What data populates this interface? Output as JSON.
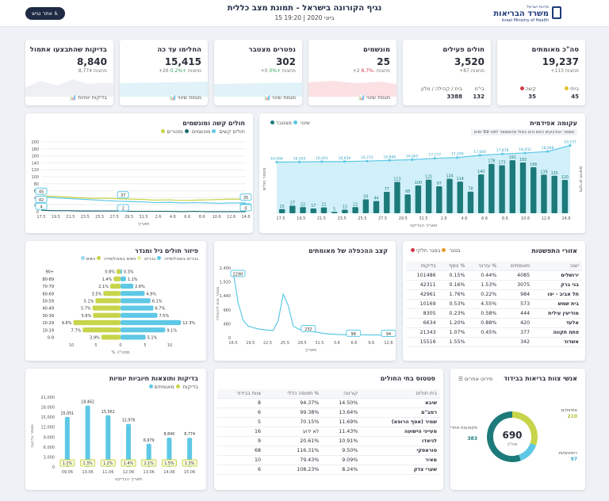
{
  "header": {
    "title": "נגיף הקורונה בישראל - תמונת מצב כללית",
    "date": "15 ביוני 2020 | 19:20",
    "en_button": "אתר נגיש",
    "logo_line1": "מדינת ישראל",
    "logo_line2": "משרד הבריאות",
    "logo_line3": "Israel Ministry of Health"
  },
  "stats": [
    {
      "title": "סה\"כ מאומתים",
      "value": "19,237",
      "sub": "+113 מחצות",
      "l1": "ביתי",
      "v1": "45",
      "l2": "קשה",
      "v2": "35"
    },
    {
      "title": "חולים פעילים",
      "value": "3,520",
      "sub": "+87 מחצות",
      "l1": "בי\"ח",
      "v1": "132",
      "l2": "בית / קהילה / מלון",
      "v2": "3388"
    },
    {
      "title": "מונשמים",
      "value": "25",
      "sub": "+2 מחצות",
      "pct": "-8.7%",
      "foot": "מגמת שינוי"
    },
    {
      "title": "נפטרים מצטבר",
      "value": "302",
      "sub": "+0 מחצות",
      "pct": "+0%",
      "foot": "מגמת שינוי"
    },
    {
      "title": "החלימו עד כה",
      "value": "15,415",
      "sub": "+26 מחצות",
      "pct": "+0.2%",
      "foot": "מגמת שינוי"
    },
    {
      "title": "בדיקות שהתבצעו אתמול",
      "value": "8,840",
      "sub": "8,774 מחצות",
      "foot": "בדיקות יומיות"
    }
  ],
  "epi": {
    "title": "עקומה אפידמית",
    "legend_a": "שינוי",
    "legend_b": "מצטבר",
    "note": "מספר הנדבקים היום הינו כפול מהמספר לפני 69 ימים",
    "ylabel_left": "מספר חולים",
    "ylabel_right": "מקרים חדשים",
    "xlabel": "תאריך הבדיקה"
  },
  "severe": {
    "title": "חולים קשה ומונשמים",
    "legend_a": "חולים קשים",
    "legend_b": "מונשמים",
    "legend_c": "נפטרים",
    "xlabel": "תאריך"
  },
  "age": {
    "title": "פיזור חולים גיל ומגדר",
    "legend_a": "גברים באוכלוסייה",
    "legend_b": "גברים",
    "legend_c": "נשים באוכלוסייה",
    "legend_d": "נשים",
    "xlabel": "% מסה\"כ"
  },
  "doubling": {
    "title": "קצב ההכפלה של מאומתים",
    "ylabel": "מספר ימים להכפלה",
    "xlabel": "תאריך"
  },
  "cities": {
    "title": "אזורי התפשטות",
    "legend_a": "בסגר",
    "legend_b": "בסגר חלקי",
    "headers": [
      "ישוב",
      "מאומתים",
      "% עירוני",
      "% נוסף",
      "בדיקות"
    ],
    "rows": [
      [
        "ירושלים",
        "4085",
        "0.44%",
        "0.15%",
        "101486"
      ],
      [
        "בני ברק",
        "3075",
        "1.53%",
        "0.16%",
        "42311"
      ],
      [
        "תל אביב - יפו",
        "984",
        "0.22%",
        "1.76%",
        "42961"
      ],
      [
        "בית שמש",
        "573",
        "4.55%",
        "0.53%",
        "10169"
      ],
      [
        "מודיעין עילית",
        "444",
        "0.58%",
        "0.23%",
        "8305"
      ],
      [
        "אלעד",
        "420",
        "0.88%",
        "1.20%",
        "6634"
      ],
      [
        "פתח תקווה",
        "377",
        "0.45%",
        "1.07%",
        "21343"
      ],
      [
        "אשדוד",
        "342",
        "",
        "1.55%",
        "15516"
      ]
    ]
  },
  "tests": {
    "title": "בדיקות ותוצאות חיוביות יומיות",
    "legend_a": "בדיקות",
    "legend_b": "מאומתים",
    "ylabel": "מספר בדיקות",
    "xlabel": "תאריך הבדיקה"
  },
  "hospitals": {
    "title": "סטטוס בתי החולים",
    "headers": [
      "בית חולים",
      "קורונה",
      "% תפוסה כללי",
      "צוות בבידוד"
    ],
    "rows": [
      [
        "שיבא",
        "14.50%",
        "94.37%",
        "8"
      ],
      [
        "רמב\"ם",
        "13.64%",
        "99.38%",
        "6"
      ],
      [
        "שמיר (אסף הרופא)",
        "11.69%",
        "70.15%",
        "5"
      ],
      [
        "מעייני הישועה",
        "11.43%",
        "לא ידוע",
        "16"
      ],
      [
        "לניאדו",
        "10.91%",
        "20.61%",
        "9"
      ],
      [
        "סוראסקי",
        "9.50%",
        "116.31%",
        "68"
      ],
      [
        "מאיר",
        "9.09%",
        "79.43%",
        "10"
      ],
      [
        "שערי צדק",
        "8.24%",
        "108.23%",
        "6"
      ]
    ]
  },
  "staff": {
    "title": "אנשי צוות בריאות בבידוד",
    "detail": "פירוט אחרים",
    "total": "690",
    "total_label": "סה\"כ",
    "nurses_label": "אחיות/ים",
    "nurses": "210",
    "doctors_label": "רופאים/ות",
    "doctors": "97",
    "others_label": "מקצועות אחרים",
    "others": "383"
  },
  "chart_data": [
    {
      "type": "bar",
      "title": "עקומה אפידמית",
      "x": [
        "17.5",
        "19.5",
        "21.5",
        "23.5",
        "25.5",
        "27.5",
        "29.5",
        "31.5",
        "2.6",
        "4.6",
        "6.6",
        "8.6",
        "10.6",
        "12.6",
        "14.6"
      ],
      "bars": [
        15,
        27,
        22,
        17,
        21,
        5,
        13,
        22,
        50,
        44,
        77,
        113,
        68,
        100,
        121,
        97,
        124,
        114,
        78,
        140,
        178,
        173,
        191,
        183,
        166,
        139,
        135,
        120
      ],
      "cumulative": [
        16566,
        16593,
        16641,
        16659,
        16731,
        16848,
        16965,
        17177,
        17299,
        17660,
        17878,
        18032,
        18268,
        19237
      ]
    },
    {
      "type": "line",
      "title": "חולים קשה ומונשמים",
      "x": [
        "17.5",
        "19.5",
        "21.5",
        "23.5",
        "25.5",
        "27.5",
        "29.5",
        "31.5",
        "2.6",
        "4.6",
        "6.6",
        "8.6",
        "10.6",
        "12.6",
        "14.6"
      ],
      "ylim": [
        0,
        200
      ],
      "series": [
        {
          "name": "חולים קשים",
          "labels": [
            "45",
            "37",
            "35"
          ]
        },
        {
          "name": "מונשמים",
          "labels": [
            "42",
            "25"
          ]
        },
        {
          "name": "נפטרים",
          "labels": [
            "4",
            "2",
            "0"
          ]
        }
      ]
    },
    {
      "type": "bar",
      "title": "פיזור חולים גיל ומגדר",
      "categories": [
        "0-9",
        "10-19",
        "20-29",
        "30-39",
        "40-49",
        "50-59",
        "60-69",
        "70-79",
        "80-89",
        "90+"
      ],
      "series": [
        {
          "name": "גברים",
          "values": [
            5.1,
            9.1,
            12.3,
            7.5,
            6.7,
            6.1,
            4.9,
            2.6,
            1.1,
            0.3
          ]
        },
        {
          "name": "נשים",
          "values": [
            3.9,
            7.7,
            9.6,
            5.6,
            5.7,
            5.1,
            3.5,
            2.1,
            1.4,
            0.8
          ]
        }
      ]
    },
    {
      "type": "line",
      "title": "קצב ההכפלה של מאומתים",
      "x": [
        "16.5",
        "19.5",
        "22.5",
        "25.5",
        "28.5",
        "31.5",
        "3.6",
        "6.6",
        "9.6",
        "12.6"
      ],
      "ylim": [
        0,
        2400
      ],
      "labels": [
        "2290",
        "232",
        "98",
        "94"
      ]
    },
    {
      "type": "bar",
      "title": "בדיקות ותוצאות חיוביות יומיות",
      "categories": [
        "09.06",
        "10.06",
        "11.06",
        "12.06",
        "13.06",
        "14.06",
        "15.06"
      ],
      "values": [
        15051,
        18462,
        15562,
        12976,
        6979,
        8840,
        8774
      ],
      "positives": [
        "1.1%",
        "1.3%",
        "1.2%",
        "1.4%",
        "2.1%",
        "1.5%",
        "1.3%"
      ],
      "ylim": [
        0,
        21000
      ]
    }
  ]
}
